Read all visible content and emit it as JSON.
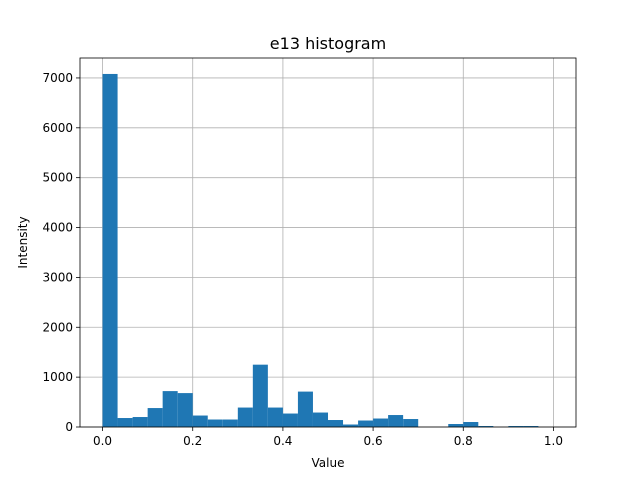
{
  "chart_data": {
    "type": "bar",
    "title": "e13 histogram",
    "xlabel": "Value",
    "ylabel": "Intensity",
    "xlim": [
      -0.05,
      1.05
    ],
    "ylim": [
      0,
      7400
    ],
    "grid": true,
    "bar_color": "#1f77b4",
    "bin_width": 0.0333333,
    "bins": [
      {
        "x0": 0.0,
        "value": 7080
      },
      {
        "x0": 0.0333,
        "value": 180
      },
      {
        "x0": 0.0667,
        "value": 200
      },
      {
        "x0": 0.1,
        "value": 380
      },
      {
        "x0": 0.1333,
        "value": 720
      },
      {
        "x0": 0.1667,
        "value": 680
      },
      {
        "x0": 0.2,
        "value": 230
      },
      {
        "x0": 0.2333,
        "value": 150
      },
      {
        "x0": 0.2667,
        "value": 150
      },
      {
        "x0": 0.3,
        "value": 390
      },
      {
        "x0": 0.3333,
        "value": 1250
      },
      {
        "x0": 0.3667,
        "value": 390
      },
      {
        "x0": 0.4,
        "value": 270
      },
      {
        "x0": 0.4333,
        "value": 710
      },
      {
        "x0": 0.4667,
        "value": 290
      },
      {
        "x0": 0.5,
        "value": 140
      },
      {
        "x0": 0.5333,
        "value": 50
      },
      {
        "x0": 0.5667,
        "value": 130
      },
      {
        "x0": 0.6,
        "value": 170
      },
      {
        "x0": 0.6333,
        "value": 240
      },
      {
        "x0": 0.6667,
        "value": 160
      },
      {
        "x0": 0.7,
        "value": 0
      },
      {
        "x0": 0.7333,
        "value": 0
      },
      {
        "x0": 0.7667,
        "value": 60
      },
      {
        "x0": 0.8,
        "value": 100
      },
      {
        "x0": 0.8333,
        "value": 20
      },
      {
        "x0": 0.8667,
        "value": 0
      },
      {
        "x0": 0.9,
        "value": 20
      },
      {
        "x0": 0.9333,
        "value": 20
      },
      {
        "x0": 0.9667,
        "value": 0
      }
    ],
    "x_ticks": [
      {
        "value": 0.0,
        "label": "0.0"
      },
      {
        "value": 0.2,
        "label": "0.2"
      },
      {
        "value": 0.4,
        "label": "0.4"
      },
      {
        "value": 0.6,
        "label": "0.6"
      },
      {
        "value": 0.8,
        "label": "0.8"
      },
      {
        "value": 1.0,
        "label": "1.0"
      }
    ],
    "y_ticks": [
      {
        "value": 0,
        "label": "0"
      },
      {
        "value": 1000,
        "label": "1000"
      },
      {
        "value": 2000,
        "label": "2000"
      },
      {
        "value": 3000,
        "label": "3000"
      },
      {
        "value": 4000,
        "label": "4000"
      },
      {
        "value": 5000,
        "label": "5000"
      },
      {
        "value": 6000,
        "label": "6000"
      },
      {
        "value": 7000,
        "label": "7000"
      }
    ]
  }
}
